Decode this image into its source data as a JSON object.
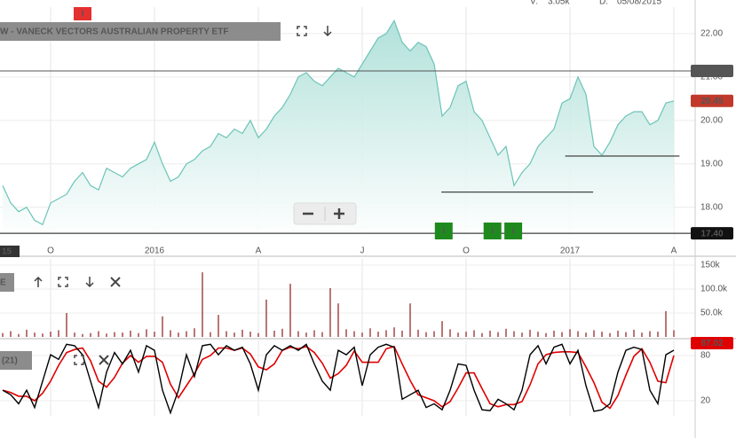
{
  "chart_data": [
    {
      "type": "area",
      "title": "W - VANECK VECTORS AUSTRALIAN PROPERTY ETF",
      "header_stats": [
        {
          "label": "V:",
          "value": "3.05k"
        },
        {
          "label": "D:",
          "value": "05/08/2015"
        }
      ],
      "x_start_label": "15",
      "categories": [
        null,
        null,
        null,
        null,
        null,
        null,
        "O",
        null,
        null,
        null,
        null,
        null,
        null,
        null,
        null,
        null,
        null,
        null,
        null,
        "2016",
        null,
        null,
        null,
        null,
        null,
        null,
        null,
        null,
        null,
        null,
        null,
        null,
        "A",
        null,
        null,
        null,
        null,
        null,
        null,
        null,
        null,
        null,
        null,
        null,
        null,
        "J",
        null,
        null,
        null,
        null,
        null,
        null,
        null,
        null,
        null,
        null,
        null,
        null,
        "O",
        null,
        null,
        null,
        null,
        null,
        null,
        null,
        null,
        null,
        null,
        null,
        null,
        "2017",
        null,
        null,
        null,
        null,
        null,
        null,
        null,
        null,
        null,
        null,
        null,
        null,
        "A"
      ],
      "values": [
        18.5,
        18.1,
        17.9,
        18.0,
        17.7,
        17.6,
        18.1,
        18.2,
        18.3,
        18.6,
        18.8,
        18.5,
        18.4,
        18.9,
        18.8,
        18.7,
        18.9,
        19.0,
        19.1,
        19.5,
        19.0,
        18.6,
        18.7,
        19.0,
        19.1,
        19.3,
        19.4,
        19.7,
        19.6,
        19.8,
        19.7,
        20.0,
        19.6,
        19.8,
        20.1,
        20.3,
        20.6,
        21.0,
        21.1,
        20.9,
        20.8,
        21.0,
        21.2,
        21.1,
        21.0,
        21.3,
        21.6,
        21.9,
        22.0,
        22.3,
        21.8,
        21.6,
        21.8,
        21.7,
        21.3,
        20.1,
        20.3,
        20.8,
        20.9,
        20.2,
        20.0,
        19.6,
        19.2,
        19.4,
        18.5,
        18.8,
        19.0,
        19.4,
        19.6,
        19.8,
        20.4,
        20.5,
        21.0,
        20.6,
        19.4,
        19.2,
        19.5,
        19.9,
        20.1,
        20.2,
        20.2,
        19.9,
        20.0,
        20.4,
        20.45
      ],
      "color": "#6cc4b8",
      "last_value_color": "#c0392b",
      "ylim": [
        17.26,
        22.61
      ],
      "yticks": [
        {
          "value": 22,
          "label": "22.00"
        },
        {
          "value": 21,
          "label": "21.00"
        },
        {
          "value": 20,
          "label": "20.00"
        },
        {
          "value": 19,
          "label": "19.00"
        },
        {
          "value": 18,
          "label": "18.00"
        }
      ],
      "grid": true,
      "reference_lines": [
        {
          "value": 21.14,
          "color": "#555555"
        },
        {
          "value": 17.4,
          "label": "17.40",
          "color": "#111111"
        }
      ],
      "trend_lines": [
        {
          "value": 18.35,
          "x": [
            54.9,
            73.9
          ]
        },
        {
          "value": 19.18,
          "x": [
            70.4,
            84.7
          ]
        }
      ],
      "events": [
        {
          "label": "I",
          "x": 10,
          "color": "#e53030",
          "position": "top"
        },
        {
          "label": "I",
          "x": 55.2,
          "color": "#1e8a1e",
          "position": "bottom"
        },
        {
          "label": "I",
          "x": 61.3,
          "color": "#1e8a1e",
          "position": "bottom"
        },
        {
          "label": "I",
          "x": 63.9,
          "color": "#1e8a1e",
          "position": "bottom"
        }
      ]
    },
    {
      "type": "bar",
      "label": "E",
      "values": [
        8000,
        12000,
        6000,
        15000,
        9000,
        7000,
        11000,
        14000,
        50000,
        9000,
        6000,
        8000,
        12000,
        7000,
        10000,
        9000,
        13000,
        8000,
        16000,
        11000,
        43000,
        14000,
        9000,
        12000,
        18000,
        135000,
        10000,
        46000,
        12000,
        9000,
        15000,
        11000,
        8000,
        78000,
        13000,
        17000,
        111000,
        12000,
        9000,
        14000,
        10000,
        102000,
        70000,
        16000,
        12000,
        9000,
        18000,
        11000,
        14000,
        20000,
        13000,
        70000,
        15000,
        10000,
        12000,
        33000,
        16000,
        9000,
        11000,
        14000,
        8000,
        13000,
        10000,
        17000,
        12000,
        9000,
        15000,
        11000,
        8000,
        13000,
        10000,
        16000,
        12000,
        9000,
        14000,
        11000,
        8000,
        13000,
        10000,
        15000,
        9000,
        12000,
        11000,
        54000,
        14000
      ],
      "color": "#8b1a1a",
      "ylim": [
        0,
        163000
      ],
      "yticks": [
        {
          "value": 150000,
          "label": "150k"
        },
        {
          "value": 100000,
          "label": "100.0k"
        },
        {
          "value": 50000,
          "label": "50.0k"
        }
      ],
      "grid": true
    },
    {
      "type": "line",
      "label": "(21)",
      "series": [
        {
          "color": "#000000",
          "values": [
            34,
            28,
            16,
            34,
            11,
            46,
            81,
            75,
            95,
            93,
            81,
            46,
            11,
            58,
            84,
            69,
            87,
            58,
            93,
            87,
            34,
            4,
            34,
            81,
            52,
            93,
            95,
            81,
            93,
            87,
            91,
            69,
            34,
            81,
            93,
            87,
            93,
            87,
            95,
            69,
            46,
            34,
            87,
            81,
            91,
            40,
            81,
            91,
            95,
            91,
            22,
            28,
            34,
            11,
            16,
            8,
            34,
            69,
            67,
            34,
            8,
            7,
            22,
            16,
            8,
            34,
            81,
            93,
            69,
            91,
            95,
            69,
            87,
            40,
            6,
            8,
            16,
            58,
            87,
            91,
            88,
            34,
            16,
            81,
            87.02
          ]
        },
        {
          "color": "#e00000",
          "values": [
            34,
            31,
            26,
            26,
            20,
            30,
            46,
            67,
            84,
            88,
            90,
            73,
            46,
            38,
            51,
            70,
            80,
            71,
            79,
            79,
            71,
            42,
            24,
            40,
            56,
            75,
            80,
            90,
            90,
            87,
            90,
            82,
            65,
            61,
            69,
            87,
            91,
            89,
            92,
            84,
            70,
            50,
            56,
            67,
            86,
            71,
            71,
            71,
            89,
            92,
            69,
            47,
            28,
            24,
            20,
            12,
            19,
            37,
            57,
            57,
            36,
            16,
            12,
            15,
            15,
            19,
            41,
            69,
            81,
            84,
            85,
            85,
            84,
            65,
            44,
            18,
            10,
            27,
            54,
            79,
            89,
            71,
            46,
            44,
            80
          ]
        }
      ],
      "badge_color": "#e00000",
      "ylim": [
        0,
        100
      ],
      "yticks": [
        80,
        20
      ],
      "grid": true
    }
  ]
}
